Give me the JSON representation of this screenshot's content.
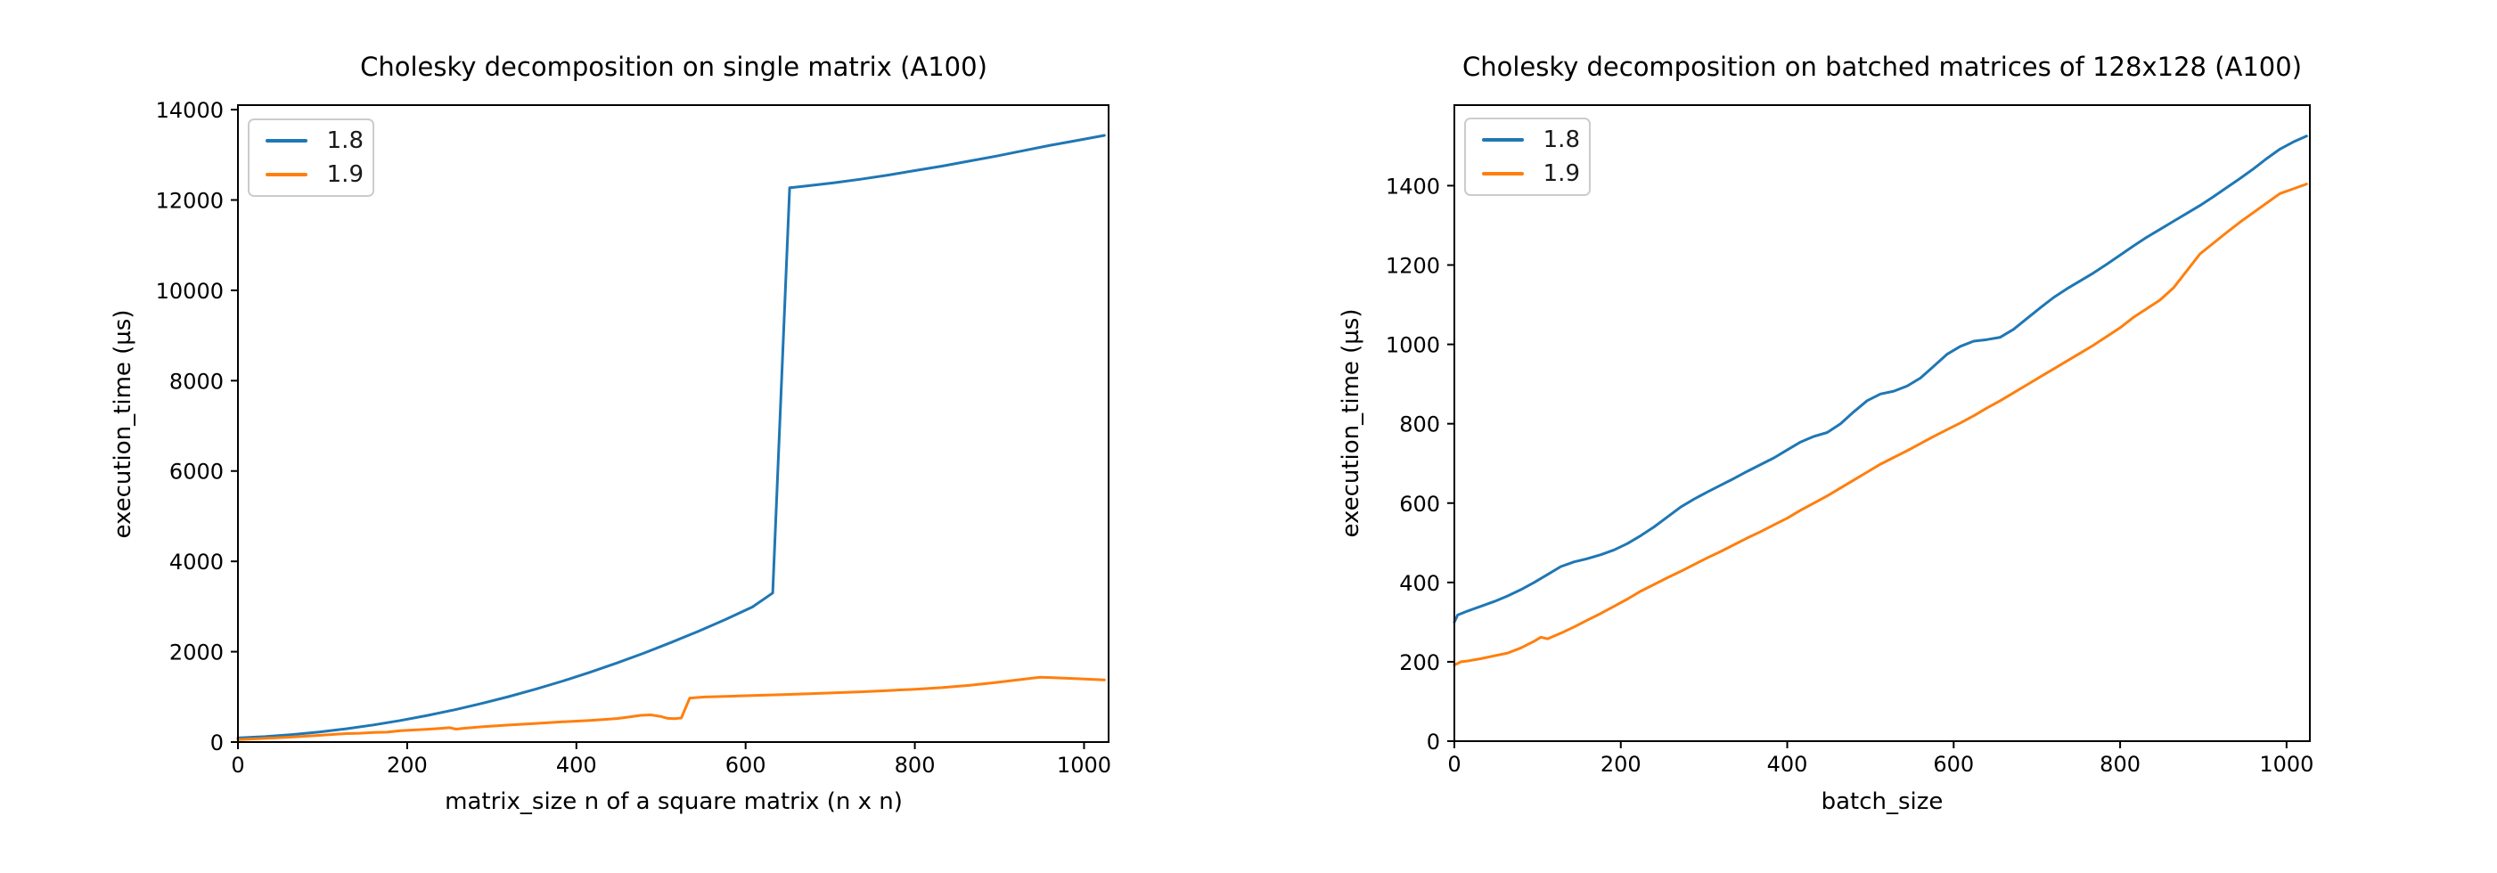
{
  "figure": {
    "background_color": "#ffffff",
    "text_color": "#000000",
    "spine_color": "#000000"
  },
  "chart_data": [
    {
      "type": "line",
      "title": "Cholesky decomposition on single matrix (A100)",
      "xlabel": "matrix_size n of a square matrix (n x n)",
      "ylabel": "execution_time (µs)",
      "xlim": [
        0,
        1029
      ],
      "ylim": [
        0,
        14100
      ],
      "xticks": [
        0,
        200,
        400,
        600,
        800,
        1000
      ],
      "yticks": [
        0,
        2000,
        4000,
        6000,
        8000,
        10000,
        12000,
        14000
      ],
      "grid": false,
      "legend_position": "upper left",
      "series": [
        {
          "name": "1.8",
          "color": "#1f77b4",
          "points": [
            [
              0,
              90
            ],
            [
              32,
              121
            ],
            [
              64,
              165
            ],
            [
              96,
              223
            ],
            [
              128,
              294
            ],
            [
              160,
              379
            ],
            [
              192,
              477
            ],
            [
              224,
              589
            ],
            [
              256,
              714
            ],
            [
              288,
              853
            ],
            [
              320,
              1006
            ],
            [
              352,
              1172
            ],
            [
              384,
              1351
            ],
            [
              416,
              1544
            ],
            [
              448,
              1751
            ],
            [
              480,
              1971
            ],
            [
              512,
              2204
            ],
            [
              544,
              2452
            ],
            [
              576,
              2712
            ],
            [
              608,
              2990
            ],
            [
              632,
              3300
            ],
            [
              652,
              12270
            ],
            [
              672,
              12310
            ],
            [
              704,
              12380
            ],
            [
              736,
              12460
            ],
            [
              768,
              12550
            ],
            [
              800,
              12650
            ],
            [
              832,
              12750
            ],
            [
              864,
              12860
            ],
            [
              896,
              12970
            ],
            [
              928,
              13090
            ],
            [
              960,
              13210
            ],
            [
              992,
              13320
            ],
            [
              1024,
              13430
            ]
          ]
        },
        {
          "name": "1.9",
          "color": "#ff7f0e",
          "points": [
            [
              0,
              55
            ],
            [
              32,
              80
            ],
            [
              64,
              110
            ],
            [
              96,
              148
            ],
            [
              128,
              188
            ],
            [
              144,
              195
            ],
            [
              160,
              212
            ],
            [
              176,
              218
            ],
            [
              192,
              252
            ],
            [
              224,
              283
            ],
            [
              240,
              303
            ],
            [
              250,
              318
            ],
            [
              258,
              285
            ],
            [
              266,
              303
            ],
            [
              288,
              337
            ],
            [
              320,
              377
            ],
            [
              352,
              413
            ],
            [
              384,
              448
            ],
            [
              416,
              480
            ],
            [
              448,
              520
            ],
            [
              464,
              560
            ],
            [
              476,
              592
            ],
            [
              488,
              602
            ],
            [
              500,
              565
            ],
            [
              508,
              524
            ],
            [
              516,
              519
            ],
            [
              524,
              532
            ],
            [
              534,
              975
            ],
            [
              552,
              998
            ],
            [
              576,
              1012
            ],
            [
              608,
              1030
            ],
            [
              640,
              1048
            ],
            [
              672,
              1066
            ],
            [
              704,
              1088
            ],
            [
              736,
              1112
            ],
            [
              768,
              1140
            ],
            [
              800,
              1170
            ],
            [
              832,
              1205
            ],
            [
              864,
              1255
            ],
            [
              896,
              1320
            ],
            [
              928,
              1390
            ],
            [
              948,
              1435
            ],
            [
              960,
              1428
            ],
            [
              992,
              1402
            ],
            [
              1024,
              1375
            ]
          ]
        }
      ]
    },
    {
      "type": "line",
      "title": "Cholesky decomposition on batched matrices of 128x128 (A100)",
      "xlabel": "batch_size",
      "ylabel": "execution_time (µs)",
      "xlim": [
        0,
        1028
      ],
      "ylim": [
        0,
        1603
      ],
      "xticks": [
        0,
        200,
        400,
        600,
        800,
        1000
      ],
      "yticks": [
        0,
        200,
        400,
        600,
        800,
        1000,
        1200,
        1400
      ],
      "grid": false,
      "legend_position": "upper left",
      "series": [
        {
          "name": "1.8",
          "color": "#1f77b4",
          "points": [
            [
              0,
              300
            ],
            [
              4,
              318
            ],
            [
              16,
              328
            ],
            [
              32,
              340
            ],
            [
              48,
              352
            ],
            [
              64,
              366
            ],
            [
              80,
              382
            ],
            [
              96,
              400
            ],
            [
              112,
              420
            ],
            [
              128,
              440
            ],
            [
              144,
              452
            ],
            [
              160,
              460
            ],
            [
              176,
              470
            ],
            [
              192,
              482
            ],
            [
              208,
              498
            ],
            [
              224,
              518
            ],
            [
              240,
              540
            ],
            [
              256,
              565
            ],
            [
              272,
              590
            ],
            [
              288,
              610
            ],
            [
              304,
              628
            ],
            [
              320,
              645
            ],
            [
              336,
              662
            ],
            [
              352,
              680
            ],
            [
              368,
              697
            ],
            [
              384,
              714
            ],
            [
              400,
              734
            ],
            [
              416,
              754
            ],
            [
              432,
              768
            ],
            [
              448,
              778
            ],
            [
              464,
              800
            ],
            [
              480,
              830
            ],
            [
              496,
              858
            ],
            [
              512,
              875
            ],
            [
              528,
              882
            ],
            [
              544,
              895
            ],
            [
              560,
              915
            ],
            [
              576,
              945
            ],
            [
              592,
              975
            ],
            [
              608,
              995
            ],
            [
              624,
              1008
            ],
            [
              640,
              1012
            ],
            [
              656,
              1018
            ],
            [
              672,
              1038
            ],
            [
              688,
              1065
            ],
            [
              704,
              1092
            ],
            [
              720,
              1118
            ],
            [
              736,
              1140
            ],
            [
              752,
              1160
            ],
            [
              768,
              1180
            ],
            [
              784,
              1202
            ],
            [
              800,
              1225
            ],
            [
              816,
              1248
            ],
            [
              832,
              1270
            ],
            [
              848,
              1290
            ],
            [
              864,
              1310
            ],
            [
              880,
              1330
            ],
            [
              896,
              1350
            ],
            [
              912,
              1372
            ],
            [
              928,
              1395
            ],
            [
              944,
              1418
            ],
            [
              960,
              1442
            ],
            [
              976,
              1468
            ],
            [
              992,
              1492
            ],
            [
              1008,
              1510
            ],
            [
              1024,
              1525
            ]
          ]
        },
        {
          "name": "1.9",
          "color": "#ff7f0e",
          "points": [
            [
              0,
              192
            ],
            [
              8,
              200
            ],
            [
              16,
              202
            ],
            [
              32,
              208
            ],
            [
              48,
              215
            ],
            [
              64,
              222
            ],
            [
              80,
              235
            ],
            [
              96,
              252
            ],
            [
              104,
              262
            ],
            [
              112,
              258
            ],
            [
              128,
              272
            ],
            [
              144,
              288
            ],
            [
              160,
              305
            ],
            [
              176,
              322
            ],
            [
              192,
              340
            ],
            [
              208,
              358
            ],
            [
              224,
              378
            ],
            [
              240,
              395
            ],
            [
              256,
              412
            ],
            [
              272,
              428
            ],
            [
              288,
              445
            ],
            [
              304,
              462
            ],
            [
              320,
              478
            ],
            [
              336,
              495
            ],
            [
              352,
              512
            ],
            [
              368,
              528
            ],
            [
              384,
              545
            ],
            [
              400,
              562
            ],
            [
              416,
              582
            ],
            [
              432,
              600
            ],
            [
              448,
              618
            ],
            [
              464,
              638
            ],
            [
              480,
              658
            ],
            [
              496,
              678
            ],
            [
              512,
              698
            ],
            [
              528,
              715
            ],
            [
              544,
              732
            ],
            [
              560,
              750
            ],
            [
              576,
              768
            ],
            [
              592,
              785
            ],
            [
              608,
              802
            ],
            [
              624,
              820
            ],
            [
              640,
              840
            ],
            [
              656,
              858
            ],
            [
              672,
              878
            ],
            [
              688,
              898
            ],
            [
              704,
              918
            ],
            [
              720,
              938
            ],
            [
              736,
              958
            ],
            [
              752,
              978
            ],
            [
              768,
              998
            ],
            [
              784,
              1020
            ],
            [
              800,
              1042
            ],
            [
              816,
              1068
            ],
            [
              832,
              1090
            ],
            [
              848,
              1112
            ],
            [
              864,
              1142
            ],
            [
              880,
              1185
            ],
            [
              896,
              1228
            ],
            [
              912,
              1255
            ],
            [
              928,
              1282
            ],
            [
              944,
              1308
            ],
            [
              960,
              1332
            ],
            [
              976,
              1356
            ],
            [
              992,
              1380
            ],
            [
              1008,
              1392
            ],
            [
              1024,
              1404
            ]
          ]
        }
      ]
    }
  ]
}
